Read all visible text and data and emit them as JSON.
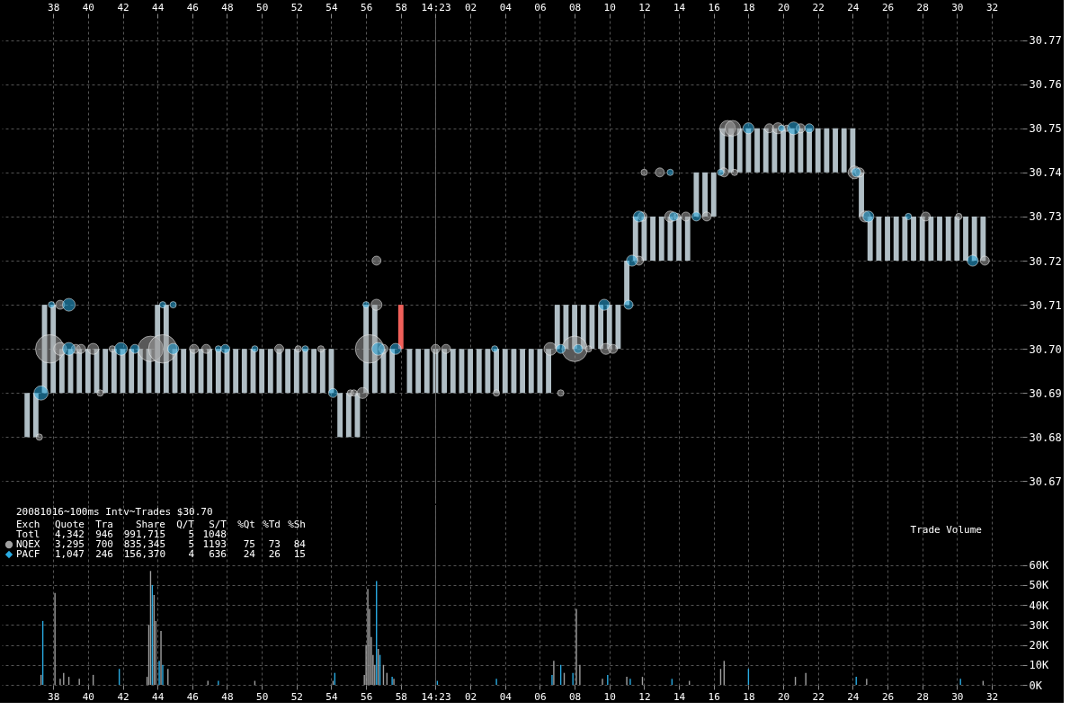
{
  "chart_data": [
    {
      "type": "bar",
      "xlim": [
        "2008-10-16T14:22:35.3",
        "2008-10-16T14:23:33.5"
      ],
      "xticks": [
        {
          "value": "2008-10-16T14:22:38",
          "label": "38"
        },
        {
          "value": "2008-10-16T14:22:40",
          "label": "40"
        },
        {
          "value": "2008-10-16T14:22:42",
          "label": "42"
        },
        {
          "value": "2008-10-16T14:22:44",
          "label": "44"
        },
        {
          "value": "2008-10-16T14:22:46",
          "label": "46"
        },
        {
          "value": "2008-10-16T14:22:48",
          "label": "48"
        },
        {
          "value": "2008-10-16T14:22:50",
          "label": "50"
        },
        {
          "value": "2008-10-16T14:22:52",
          "label": "52"
        },
        {
          "value": "2008-10-16T14:22:54",
          "label": "54"
        },
        {
          "value": "2008-10-16T14:22:56",
          "label": "56"
        },
        {
          "value": "2008-10-16T14:22:58",
          "label": "58"
        },
        {
          "value": "2008-10-16T14:23:00",
          "label": "14:23"
        },
        {
          "value": "2008-10-16T14:23:02",
          "label": "02"
        },
        {
          "value": "2008-10-16T14:23:04",
          "label": "04"
        },
        {
          "value": "2008-10-16T14:23:06",
          "label": "06"
        },
        {
          "value": "2008-10-16T14:23:08",
          "label": "08"
        },
        {
          "value": "2008-10-16T14:23:10",
          "label": "10"
        },
        {
          "value": "2008-10-16T14:23:12",
          "label": "12"
        },
        {
          "value": "2008-10-16T14:23:14",
          "label": "14"
        },
        {
          "value": "2008-10-16T14:23:16",
          "label": "16"
        },
        {
          "value": "2008-10-16T14:23:18",
          "label": "18"
        },
        {
          "value": "2008-10-16T14:23:20",
          "label": "20"
        },
        {
          "value": "2008-10-16T14:23:22",
          "label": "22"
        },
        {
          "value": "2008-10-16T14:23:24",
          "label": "24"
        },
        {
          "value": "2008-10-16T14:23:26",
          "label": "26"
        },
        {
          "value": "2008-10-16T14:23:28",
          "label": "28"
        },
        {
          "value": "2008-10-16T14:23:30",
          "label": "30"
        },
        {
          "value": "2008-10-16T14:23:32",
          "label": "32"
        }
      ],
      "ylim": [
        30.665,
        30.775
      ],
      "yticks": [
        30.67,
        30.68,
        30.69,
        {
          "value": 30.7,
          "label": "30.70"
        },
        30.71,
        30.72,
        30.73,
        30.74,
        30.75,
        30.76,
        30.77
      ],
      "grid": true,
      "ref_lines": [
        {
          "axis": "x",
          "value": "2008-10-16T14:23:00",
          "color": "#606060"
        }
      ],
      "series": [
        {
          "type": "bar",
          "x": [
            "2008-10-16T14:22:36.5",
            "2008-10-16T14:22:37.0",
            "2008-10-16T14:22:37.5",
            "2008-10-16T14:22:38.0",
            "2008-10-16T14:22:38.5",
            "2008-10-16T14:22:39.0",
            "2008-10-16T14:22:39.5",
            "2008-10-16T14:22:40.0",
            "2008-10-16T14:22:40.5",
            "2008-10-16T14:22:41.0",
            "2008-10-16T14:22:41.5",
            "2008-10-16T14:22:42.0",
            "2008-10-16T14:22:42.5",
            "2008-10-16T14:22:43.0",
            "2008-10-16T14:22:43.5",
            "2008-10-16T14:22:44.0",
            "2008-10-16T14:22:44.5",
            "2008-10-16T14:22:45.0",
            "2008-10-16T14:22:45.5",
            "2008-10-16T14:22:46.0",
            "2008-10-16T14:22:46.5",
            "2008-10-16T14:22:47.0",
            "2008-10-16T14:22:47.5",
            "2008-10-16T14:22:48.0",
            "2008-10-16T14:22:48.5",
            "2008-10-16T14:22:49.0",
            "2008-10-16T14:22:49.5",
            "2008-10-16T14:22:50.0",
            "2008-10-16T14:22:50.5",
            "2008-10-16T14:22:51.0",
            "2008-10-16T14:22:51.5",
            "2008-10-16T14:22:52.0",
            "2008-10-16T14:22:52.5",
            "2008-10-16T14:22:53.0",
            "2008-10-16T14:22:53.5",
            "2008-10-16T14:22:54.0",
            "2008-10-16T14:22:54.5",
            "2008-10-16T14:22:55.0",
            "2008-10-16T14:22:55.5",
            "2008-10-16T14:22:56.0",
            "2008-10-16T14:22:56.5",
            "2008-10-16T14:22:57.0",
            "2008-10-16T14:22:57.5",
            "2008-10-16T14:22:58.0",
            "2008-10-16T14:22:58.5",
            "2008-10-16T14:22:59.0",
            "2008-10-16T14:22:59.5",
            "2008-10-16T14:23:00.0",
            "2008-10-16T14:23:00.5",
            "2008-10-16T14:23:01.0",
            "2008-10-16T14:23:01.5",
            "2008-10-16T14:23:02.0",
            "2008-10-16T14:23:02.5",
            "2008-10-16T14:23:03.0",
            "2008-10-16T14:23:03.5",
            "2008-10-16T14:23:04.0",
            "2008-10-16T14:23:04.5",
            "2008-10-16T14:23:05.0",
            "2008-10-16T14:23:05.5",
            "2008-10-16T14:23:06.0",
            "2008-10-16T14:23:06.5",
            "2008-10-16T14:23:07.0",
            "2008-10-16T14:23:07.5",
            "2008-10-16T14:23:08.0",
            "2008-10-16T14:23:08.5",
            "2008-10-16T14:23:09.0",
            "2008-10-16T14:23:09.5",
            "2008-10-16T14:23:10.0",
            "2008-10-16T14:23:10.5",
            "2008-10-16T14:23:11.0",
            "2008-10-16T14:23:11.5",
            "2008-10-16T14:23:12.0",
            "2008-10-16T14:23:12.5",
            "2008-10-16T14:23:13.0",
            "2008-10-16T14:23:13.5",
            "2008-10-16T14:23:14.0",
            "2008-10-16T14:23:14.5",
            "2008-10-16T14:23:15.0",
            "2008-10-16T14:23:15.5",
            "2008-10-16T14:23:16.0",
            "2008-10-16T14:23:16.5",
            "2008-10-16T14:23:17.0",
            "2008-10-16T14:23:17.5",
            "2008-10-16T14:23:18.0",
            "2008-10-16T14:23:18.5",
            "2008-10-16T14:23:19.0",
            "2008-10-16T14:23:19.5",
            "2008-10-16T14:23:20.0",
            "2008-10-16T14:23:20.5",
            "2008-10-16T14:23:21.0",
            "2008-10-16T14:23:21.5",
            "2008-10-16T14:23:22.0",
            "2008-10-16T14:23:22.5",
            "2008-10-16T14:23:23.0",
            "2008-10-16T14:23:23.5",
            "2008-10-16T14:23:24.0",
            "2008-10-16T14:23:24.5",
            "2008-10-16T14:23:25.0",
            "2008-10-16T14:23:25.5",
            "2008-10-16T14:23:26.0",
            "2008-10-16T14:23:26.5",
            "2008-10-16T14:23:27.0",
            "2008-10-16T14:23:27.5",
            "2008-10-16T14:23:28.0",
            "2008-10-16T14:23:28.5",
            "2008-10-16T14:23:29.0",
            "2008-10-16T14:23:29.5",
            "2008-10-16T14:23:30.0",
            "2008-10-16T14:23:30.5",
            "2008-10-16T14:23:31.0",
            "2008-10-16T14:23:31.5"
          ],
          "base": [
            30.68,
            30.68,
            30.69,
            30.69,
            30.69,
            30.69,
            30.69,
            30.69,
            30.69,
            30.69,
            30.69,
            30.69,
            30.69,
            30.69,
            30.69,
            30.69,
            30.69,
            30.69,
            30.69,
            30.69,
            30.69,
            30.69,
            30.69,
            30.69,
            30.69,
            30.69,
            30.69,
            30.69,
            30.69,
            30.69,
            30.69,
            30.69,
            30.69,
            30.69,
            30.69,
            30.69,
            30.68,
            30.68,
            30.68,
            30.69,
            30.69,
            30.69,
            30.69,
            30.7,
            30.69,
            30.69,
            30.69,
            30.69,
            30.69,
            30.69,
            30.69,
            30.69,
            30.69,
            30.69,
            30.69,
            30.69,
            30.69,
            30.69,
            30.69,
            30.69,
            30.69,
            30.7,
            30.7,
            30.7,
            30.7,
            30.7,
            30.7,
            30.7,
            30.7,
            30.71,
            30.72,
            30.72,
            30.72,
            30.72,
            30.72,
            30.72,
            30.72,
            30.73,
            30.73,
            30.73,
            30.74,
            30.74,
            30.74,
            30.74,
            30.74,
            30.74,
            30.74,
            30.74,
            30.74,
            30.74,
            30.74,
            30.74,
            30.74,
            30.74,
            30.74,
            30.74,
            30.73,
            30.72,
            30.72,
            30.72,
            30.72,
            30.72,
            30.72,
            30.72,
            30.72,
            30.72,
            30.72,
            30.72,
            30.72,
            30.72,
            30.72
          ],
          "values": [
            0.01,
            0.01,
            0.02,
            0.02,
            0.01,
            0.01,
            0.01,
            0.01,
            0.01,
            0.01,
            0.01,
            0.01,
            0.01,
            0.01,
            0.01,
            0.02,
            0.02,
            0.01,
            0.01,
            0.01,
            0.01,
            0.01,
            0.01,
            0.01,
            0.01,
            0.01,
            0.01,
            0.01,
            0.01,
            0.01,
            0.01,
            0.01,
            0.01,
            0.01,
            0.01,
            0.01,
            0.01,
            0.01,
            0.01,
            0.02,
            0.02,
            0.01,
            0.01,
            0.01,
            0.01,
            0.01,
            0.01,
            0.01,
            0.01,
            0.01,
            0.01,
            0.01,
            0.01,
            0.01,
            0.01,
            0.01,
            0.01,
            0.01,
            0.01,
            0.01,
            0.01,
            0.01,
            0.01,
            0.01,
            0.01,
            0.01,
            0.01,
            0.01,
            0.01,
            0.01,
            0.01,
            0.01,
            0.01,
            0.01,
            0.01,
            0.01,
            0.01,
            0.01,
            0.01,
            0.01,
            0.01,
            0.01,
            0.01,
            0.01,
            0.01,
            0.01,
            0.01,
            0.01,
            0.01,
            0.01,
            0.01,
            0.01,
            0.01,
            0.01,
            0.01,
            0.01,
            0.01,
            0.01,
            0.01,
            0.01,
            0.01,
            0.01,
            0.01,
            0.01,
            0.01,
            0.01,
            0.01,
            0.01,
            0.01,
            0.01,
            0.01
          ],
          "color": "#b0bec5",
          "colors": [
            null,
            null,
            null,
            null,
            null,
            null,
            null,
            null,
            null,
            null,
            null,
            null,
            null,
            null,
            null,
            null,
            null,
            null,
            null,
            null,
            null,
            null,
            null,
            null,
            null,
            null,
            null,
            null,
            null,
            null,
            null,
            null,
            null,
            null,
            null,
            null,
            null,
            null,
            null,
            null,
            null,
            null,
            null,
            "#f0605a",
            null,
            null,
            null,
            null,
            null,
            null,
            null,
            null,
            null,
            null,
            null,
            null,
            null,
            null,
            null,
            null,
            null,
            null,
            null,
            null,
            null,
            null,
            null,
            null,
            null,
            null,
            null,
            null,
            null,
            null,
            null,
            null,
            null,
            null,
            null,
            null,
            null,
            null,
            null,
            null,
            null,
            null,
            null,
            null,
            null,
            null,
            null,
            null,
            null,
            null,
            null,
            null,
            null,
            null,
            null,
            null,
            null,
            null,
            null,
            null,
            null,
            null,
            null,
            null,
            null,
            null,
            null
          ]
        },
        {
          "type": "bubble",
          "color": "#a0a0a0",
          "x": [
            "2008-10-16T14:22:37.2",
            "2008-10-16T14:22:37.8",
            "2008-10-16T14:22:38.4",
            "2008-10-16T14:22:38.4",
            "2008-10-16T14:22:39.3",
            "2008-10-16T14:22:39.6",
            "2008-10-16T14:22:40.3",
            "2008-10-16T14:22:40.7",
            "2008-10-16T14:22:41.4",
            "2008-10-16T14:22:43.6",
            "2008-10-16T14:22:44.3",
            "2008-10-16T14:22:46.1",
            "2008-10-16T14:22:46.8",
            "2008-10-16T14:22:51.0",
            "2008-10-16T14:22:52.1",
            "2008-10-16T14:22:53.4",
            "2008-10-16T14:22:55.1",
            "2008-10-16T14:22:55.3",
            "2008-10-16T14:22:55.8",
            "2008-10-16T14:22:56.2",
            "2008-10-16T14:22:56.6",
            "2008-10-16T14:22:56.6",
            "2008-10-16T14:22:57.0",
            "2008-10-16T14:23:00.0",
            "2008-10-16T14:23:00.6",
            "2008-10-16T14:23:03.5",
            "2008-10-16T14:23:06.6",
            "2008-10-16T14:23:07.2",
            "2008-10-16T14:23:08.0",
            "2008-10-16T14:23:08.8",
            "2008-10-16T14:23:09.8",
            "2008-10-16T14:23:10.2",
            "2008-10-16T14:23:11.7",
            "2008-10-16T14:23:11.9",
            "2008-10-16T14:23:12.0",
            "2008-10-16T14:23:12.9",
            "2008-10-16T14:23:13.5",
            "2008-10-16T14:23:13.9",
            "2008-10-16T14:23:14.4",
            "2008-10-16T14:23:15.6",
            "2008-10-16T14:23:16.6",
            "2008-10-16T14:23:17.2",
            "2008-10-16T14:23:16.8",
            "2008-10-16T14:23:17.1",
            "2008-10-16T14:23:19.2",
            "2008-10-16T14:23:19.7",
            "2008-10-16T14:23:20.2",
            "2008-10-16T14:23:21.0",
            "2008-10-16T14:23:24.1",
            "2008-10-16T14:23:24.4",
            "2008-10-16T14:23:24.7",
            "2008-10-16T14:23:28.2",
            "2008-10-16T14:23:30.1",
            "2008-10-16T14:23:31.6"
          ],
          "values": [
            30.68,
            30.7,
            30.7,
            30.71,
            30.7,
            30.7,
            30.7,
            30.69,
            30.7,
            30.7,
            30.7,
            30.7,
            30.7,
            30.7,
            30.7,
            30.7,
            30.69,
            30.69,
            30.69,
            30.7,
            30.71,
            30.72,
            30.7,
            30.7,
            30.7,
            30.69,
            30.7,
            30.69,
            30.7,
            30.7,
            30.7,
            30.7,
            30.72,
            30.73,
            30.74,
            30.74,
            30.73,
            30.73,
            30.73,
            30.73,
            30.74,
            30.74,
            30.75,
            30.75,
            30.75,
            30.75,
            30.75,
            30.75,
            30.74,
            30.74,
            30.73,
            30.73,
            30.73,
            30.72
          ],
          "sizes": [
            0.05,
            1,
            0.2,
            0.1,
            0.1,
            0.1,
            0.15,
            0.05,
            0.05,
            0.8,
            1,
            0.1,
            0.1,
            0.1,
            0.05,
            0.05,
            0.05,
            0.05,
            0.15,
            1,
            0.15,
            0.1,
            0.1,
            0.1,
            0.1,
            0.05,
            0.2,
            0.05,
            0.8,
            0.05,
            0.15,
            0.1,
            0.1,
            0.1,
            0.05,
            0.1,
            0.15,
            0.05,
            0.1,
            0.1,
            0.1,
            0.05,
            0.3,
            0.3,
            0.1,
            0.15,
            0.05,
            0.1,
            0.2,
            0.1,
            0.15,
            0.1,
            0.05,
            0.1
          ]
        },
        {
          "type": "bubble",
          "color": "#29abe2",
          "x": [
            "2008-10-16T14:22:37.3",
            "2008-10-16T14:22:37.9",
            "2008-10-16T14:22:38.9",
            "2008-10-16T14:22:38.9",
            "2008-10-16T14:22:41.9",
            "2008-10-16T14:22:42.7",
            "2008-10-16T14:22:44.3",
            "2008-10-16T14:22:44.9",
            "2008-10-16T14:22:44.9",
            "2008-10-16T14:22:47.5",
            "2008-10-16T14:22:47.9",
            "2008-10-16T14:22:49.6",
            "2008-10-16T14:22:52.5",
            "2008-10-16T14:22:54.1",
            "2008-10-16T14:22:56.0",
            "2008-10-16T14:22:56.7",
            "2008-10-16T14:22:57.7",
            "2008-10-16T14:23:03.4",
            "2008-10-16T14:23:07.2",
            "2008-10-16T14:23:08.2",
            "2008-10-16T14:23:09.7",
            "2008-10-16T14:23:11.1",
            "2008-10-16T14:23:11.3",
            "2008-10-16T14:23:11.7",
            "2008-10-16T14:23:13.7",
            "2008-10-16T14:23:13.5",
            "2008-10-16T14:23:15.0",
            "2008-10-16T14:23:16.4",
            "2008-10-16T14:23:18.0",
            "2008-10-16T14:23:19.9",
            "2008-10-16T14:23:20.6",
            "2008-10-16T14:23:21.5",
            "2008-10-16T14:23:24.2",
            "2008-10-16T14:23:24.9",
            "2008-10-16T14:23:27.2",
            "2008-10-16T14:23:30.9"
          ],
          "values": [
            30.69,
            30.71,
            30.7,
            30.71,
            30.7,
            30.7,
            30.71,
            30.7,
            30.71,
            30.7,
            30.7,
            30.7,
            30.7,
            30.69,
            30.71,
            30.7,
            30.7,
            30.7,
            30.7,
            30.7,
            30.71,
            30.71,
            30.72,
            30.73,
            30.73,
            30.74,
            30.73,
            30.74,
            30.75,
            30.75,
            30.75,
            30.75,
            30.74,
            30.73,
            30.73,
            30.72
          ],
          "sizes": [
            0.25,
            0.05,
            0.2,
            0.2,
            0.2,
            0.1,
            0.05,
            0.15,
            0.05,
            0.05,
            0.1,
            0.05,
            0.05,
            0.1,
            0.05,
            0.2,
            0.15,
            0.05,
            0.1,
            0.1,
            0.15,
            0.1,
            0.15,
            0.15,
            0.1,
            0.05,
            0.1,
            0.05,
            0.15,
            0.05,
            0.2,
            0.1,
            0.1,
            0.15,
            0.05,
            0.15
          ]
        }
      ]
    },
    {
      "type": "bar",
      "title": "20081016~100ms Intv~Trades $30.70",
      "ylabel": "Trade Volume",
      "annotations": [
        "Exch Quote Tra Share Q/T S/T %Qt %Td %Sh",
        "Totl 4,342 946 991,715 5 1048",
        "3,295 700 835,345 5 1193 75 73 84",
        "1,047 246 156,370 4 636 24 26 15"
      ],
      "legend": "top left",
      "xlim": [
        "2008-10-16T14:22:35.3",
        "2008-10-16T14:23:33.5"
      ],
      "xticks": [
        {
          "value": "2008-10-16T14:22:38",
          "label": "38"
        },
        {
          "value": "2008-10-16T14:22:40",
          "label": "40"
        },
        {
          "value": "2008-10-16T14:22:42",
          "label": "42"
        },
        {
          "value": "2008-10-16T14:22:44",
          "label": "44"
        },
        {
          "value": "2008-10-16T14:22:46",
          "label": "46"
        },
        {
          "value": "2008-10-16T14:22:48",
          "label": "48"
        },
        {
          "value": "2008-10-16T14:22:50",
          "label": "50"
        },
        {
          "value": "2008-10-16T14:22:52",
          "label": "52"
        },
        {
          "value": "2008-10-16T14:22:54",
          "label": "54"
        },
        {
          "value": "2008-10-16T14:22:56",
          "label": "56"
        },
        {
          "value": "2008-10-16T14:22:58",
          "label": "58"
        },
        {
          "value": "2008-10-16T14:23:00",
          "label": "14:23"
        },
        {
          "value": "2008-10-16T14:23:02",
          "label": "02"
        },
        {
          "value": "2008-10-16T14:23:04",
          "label": "04"
        },
        {
          "value": "2008-10-16T14:23:06",
          "label": "06"
        },
        {
          "value": "2008-10-16T14:23:08",
          "label": "08"
        },
        {
          "value": "2008-10-16T14:23:10",
          "label": "10"
        },
        {
          "value": "2008-10-16T14:23:12",
          "label": "12"
        },
        {
          "value": "2008-10-16T14:23:14",
          "label": "14"
        },
        {
          "value": "2008-10-16T14:23:16",
          "label": "16"
        },
        {
          "value": "2008-10-16T14:23:18",
          "label": "18"
        },
        {
          "value": "2008-10-16T14:23:20",
          "label": "20"
        },
        {
          "value": "2008-10-16T14:23:22",
          "label": "22"
        },
        {
          "value": "2008-10-16T14:23:24",
          "label": "24"
        },
        {
          "value": "2008-10-16T14:23:26",
          "label": "26"
        },
        {
          "value": "2008-10-16T14:23:28",
          "label": "28"
        },
        {
          "value": "2008-10-16T14:23:30",
          "label": "30"
        },
        {
          "value": "2008-10-16T14:23:32",
          "label": "32"
        }
      ],
      "ylim": [
        0,
        90
      ],
      "yticks": [
        {
          "value": 0,
          "label": "0K"
        },
        {
          "value": 10,
          "label": "10K"
        },
        {
          "value": 20,
          "label": "20K"
        },
        {
          "value": 30,
          "label": "30K"
        },
        {
          "value": 40,
          "label": "40K"
        },
        {
          "value": 50,
          "label": "50K"
        },
        {
          "value": 60,
          "label": "60K"
        }
      ],
      "grid": true,
      "ref_lines": [
        {
          "axis": "x",
          "value": "2008-10-16T14:23:00",
          "color": "#606060"
        }
      ],
      "series": [
        {
          "name": "NQEX",
          "color": "#a0a0a0",
          "x": [
            "2008-10-16T14:22:37.3",
            "2008-10-16T14:22:38.1",
            "2008-10-16T14:22:38.4",
            "2008-10-16T14:22:38.6",
            "2008-10-16T14:22:38.9",
            "2008-10-16T14:22:39.5",
            "2008-10-16T14:22:40.3",
            "2008-10-16T14:22:43.4",
            "2008-10-16T14:22:43.5",
            "2008-10-16T14:22:43.6",
            "2008-10-16T14:22:43.8",
            "2008-10-16T14:22:43.9",
            "2008-10-16T14:22:44.2",
            "2008-10-16T14:22:44.6",
            "2008-10-16T14:22:46.9",
            "2008-10-16T14:22:49.6",
            "2008-10-16T14:22:54.1",
            "2008-10-16T14:22:55.9",
            "2008-10-16T14:22:56.0",
            "2008-10-16T14:22:56.1",
            "2008-10-16T14:22:56.2",
            "2008-10-16T14:22:56.3",
            "2008-10-16T14:22:56.4",
            "2008-10-16T14:22:56.5",
            "2008-10-16T14:22:56.7",
            "2008-10-16T14:22:57.0",
            "2008-10-16T14:22:57.2",
            "2008-10-16T14:22:57.6",
            "2008-10-16T14:23:06.8",
            "2008-10-16T14:23:07.4",
            "2008-10-16T14:23:08.1",
            "2008-10-16T14:23:08.3",
            "2008-10-16T14:23:09.6",
            "2008-10-16T14:23:11.0",
            "2008-10-16T14:23:11.9",
            "2008-10-16T14:23:14.6",
            "2008-10-16T14:23:16.4",
            "2008-10-16T14:23:16.6",
            "2008-10-16T14:23:20.7",
            "2008-10-16T14:23:21.3",
            "2008-10-16T14:23:24.8",
            "2008-10-16T14:23:31.5"
          ],
          "values": [
            5,
            46,
            3,
            6,
            4,
            3,
            5,
            4,
            30,
            57,
            45,
            32,
            27,
            8,
            2,
            2,
            2,
            5,
            20,
            48,
            38,
            24,
            15,
            10,
            18,
            10,
            6,
            3,
            12,
            6,
            38,
            10,
            3,
            4,
            4,
            2,
            8,
            12,
            4,
            6,
            3,
            2
          ]
        },
        {
          "name": "PACF",
          "color": "#29abe2",
          "x": [
            "2008-10-16T14:22:37.4",
            "2008-10-16T14:22:41.8",
            "2008-10-16T14:22:43.7",
            "2008-10-16T14:22:44.1",
            "2008-10-16T14:22:44.3",
            "2008-10-16T14:22:47.5",
            "2008-10-16T14:22:54.2",
            "2008-10-16T14:22:56.6",
            "2008-10-16T14:22:56.8",
            "2008-10-16T14:22:57.5",
            "2008-10-16T14:23:00.1",
            "2008-10-16T14:23:03.5",
            "2008-10-16T14:23:06.7",
            "2008-10-16T14:23:07.2",
            "2008-10-16T14:23:07.9",
            "2008-10-16T14:23:09.9",
            "2008-10-16T14:23:11.2",
            "2008-10-16T14:23:13.6",
            "2008-10-16T14:23:18.0",
            "2008-10-16T14:23:24.2",
            "2008-10-16T14:23:30.2"
          ],
          "values": [
            32,
            8,
            50,
            12,
            10,
            2,
            6,
            52,
            15,
            4,
            2,
            3,
            5,
            10,
            6,
            5,
            3,
            3,
            8,
            4,
            3
          ]
        }
      ]
    }
  ]
}
